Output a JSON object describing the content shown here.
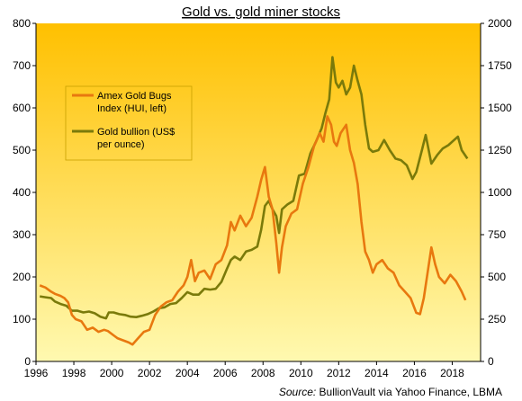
{
  "chart_data": {
    "type": "line",
    "title": "Gold vs. gold miner stocks",
    "source_label": "Source:",
    "source_text": " BullionVault via Yahoo Finance, LBMA",
    "x_ticks": [
      "1996",
      "1998",
      "2000",
      "2002",
      "2004",
      "2006",
      "2008",
      "2010",
      "2012",
      "2014",
      "2016",
      "2018"
    ],
    "xlim": [
      1996,
      2019.5
    ],
    "y_left": {
      "ticks": [
        "0",
        "100",
        "200",
        "300",
        "400",
        "500",
        "600",
        "700",
        "800"
      ],
      "lim": [
        0,
        800
      ]
    },
    "y_right": {
      "ticks": [
        "0",
        "250",
        "500",
        "750",
        "1000",
        "1250",
        "1500",
        "1750",
        "2000"
      ],
      "lim": [
        0,
        2000
      ]
    },
    "legend_position": "upper-left",
    "grid": false,
    "background_gradient": [
      "#ffc000",
      "#fff9b0"
    ],
    "series": [
      {
        "name_lines": [
          "Amex Gold Bugs",
          "Index (HUI, left)"
        ],
        "axis": "left",
        "color": "#e8780f",
        "x": [
          1996.2,
          1996.5,
          1996.8,
          1997.0,
          1997.3,
          1997.5,
          1997.7,
          1997.9,
          1998.1,
          1998.4,
          1998.7,
          1999.0,
          1999.3,
          1999.6,
          1999.8,
          2000.0,
          2000.3,
          2000.6,
          2000.9,
          2001.1,
          2001.4,
          2001.7,
          2002.0,
          2002.3,
          2002.6,
          2002.9,
          2003.2,
          2003.5,
          2003.8,
          2004.0,
          2004.2,
          2004.4,
          2004.6,
          2004.9,
          2005.2,
          2005.5,
          2005.8,
          2006.1,
          2006.3,
          2006.5,
          2006.8,
          2007.1,
          2007.4,
          2007.7,
          2007.9,
          2008.1,
          2008.3,
          2008.5,
          2008.7,
          2008.85,
          2009.0,
          2009.2,
          2009.5,
          2009.8,
          2010.1,
          2010.4,
          2010.7,
          2011.0,
          2011.2,
          2011.4,
          2011.6,
          2011.75,
          2011.9,
          2012.1,
          2012.4,
          2012.6,
          2012.8,
          2013.0,
          2013.2,
          2013.4,
          2013.6,
          2013.8,
          2014.0,
          2014.3,
          2014.6,
          2014.9,
          2015.2,
          2015.5,
          2015.8,
          2016.1,
          2016.3,
          2016.5,
          2016.7,
          2016.9,
          2017.1,
          2017.3,
          2017.6,
          2017.9,
          2018.2,
          2018.5,
          2018.7
        ],
        "values": [
          180,
          175,
          165,
          160,
          155,
          150,
          140,
          110,
          100,
          95,
          75,
          80,
          70,
          75,
          72,
          65,
          55,
          50,
          45,
          40,
          55,
          70,
          75,
          110,
          130,
          140,
          145,
          165,
          180,
          200,
          240,
          190,
          210,
          215,
          195,
          230,
          240,
          275,
          330,
          310,
          345,
          320,
          340,
          390,
          430,
          460,
          390,
          360,
          280,
          210,
          270,
          320,
          350,
          360,
          420,
          460,
          510,
          540,
          520,
          580,
          560,
          520,
          510,
          540,
          560,
          500,
          470,
          420,
          330,
          260,
          240,
          210,
          230,
          240,
          220,
          210,
          180,
          165,
          150,
          115,
          112,
          150,
          210,
          270,
          230,
          200,
          185,
          205,
          190,
          165,
          145
        ]
      },
      {
        "name_lines": [
          "Gold bullion (US$",
          "per ounce)"
        ],
        "axis": "right",
        "color": "#7a7a0a",
        "x": [
          1996.2,
          1996.5,
          1996.8,
          1997.0,
          1997.3,
          1997.6,
          1997.9,
          1998.2,
          1998.5,
          1998.8,
          1999.1,
          1999.4,
          1999.7,
          1999.85,
          2000.1,
          2000.4,
          2000.7,
          2001.0,
          2001.3,
          2001.6,
          2001.9,
          2002.2,
          2002.5,
          2002.8,
          2003.1,
          2003.4,
          2003.7,
          2004.0,
          2004.3,
          2004.6,
          2004.9,
          2005.2,
          2005.5,
          2005.8,
          2006.1,
          2006.3,
          2006.5,
          2006.8,
          2007.1,
          2007.4,
          2007.7,
          2007.9,
          2008.1,
          2008.3,
          2008.5,
          2008.7,
          2008.85,
          2009.0,
          2009.3,
          2009.6,
          2009.9,
          2010.2,
          2010.5,
          2010.8,
          2011.1,
          2011.3,
          2011.5,
          2011.67,
          2011.85,
          2012.0,
          2012.2,
          2012.4,
          2012.6,
          2012.8,
          2013.0,
          2013.2,
          2013.4,
          2013.6,
          2013.8,
          2014.1,
          2014.4,
          2014.7,
          2015.0,
          2015.3,
          2015.6,
          2015.9,
          2016.1,
          2016.4,
          2016.6,
          2016.9,
          2017.2,
          2017.5,
          2017.8,
          2018.1,
          2018.3,
          2018.5,
          2018.8
        ],
        "values": [
          385,
          380,
          375,
          355,
          340,
          330,
          300,
          300,
          290,
          295,
          285,
          265,
          255,
          290,
          290,
          280,
          275,
          265,
          262,
          270,
          280,
          295,
          315,
          320,
          340,
          345,
          375,
          410,
          395,
          395,
          430,
          425,
          430,
          470,
          550,
          600,
          620,
          600,
          650,
          660,
          680,
          780,
          920,
          950,
          900,
          860,
          760,
          900,
          930,
          950,
          1100,
          1110,
          1230,
          1300,
          1380,
          1470,
          1550,
          1800,
          1650,
          1620,
          1660,
          1580,
          1620,
          1750,
          1660,
          1580,
          1400,
          1260,
          1240,
          1250,
          1310,
          1250,
          1200,
          1190,
          1160,
          1080,
          1120,
          1250,
          1340,
          1170,
          1220,
          1260,
          1280,
          1310,
          1330,
          1250,
          1200
        ]
      }
    ]
  }
}
